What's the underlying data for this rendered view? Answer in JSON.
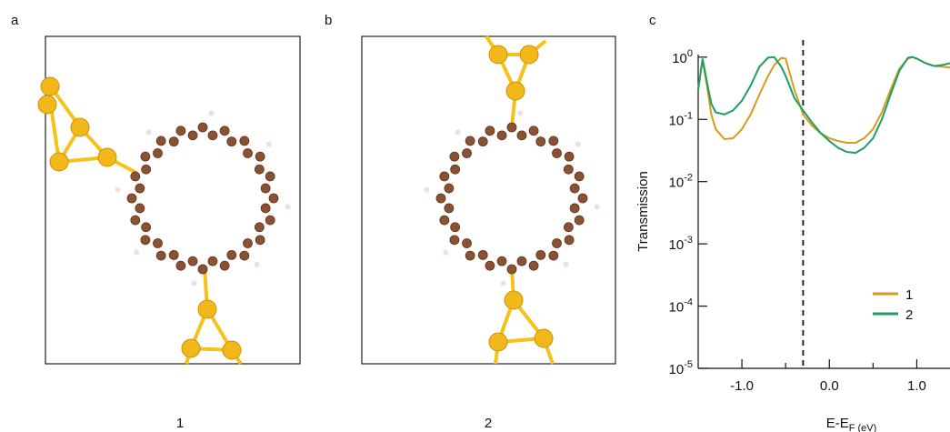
{
  "panels": [
    {
      "letter": "a",
      "caption": "1"
    },
    {
      "letter": "b",
      "caption": "2"
    }
  ],
  "chart_data": {
    "type": "line",
    "letter": "c",
    "x_label": "E-E_F (eV)",
    "y_label": "Transmission",
    "log_y": true,
    "x": [
      -1.5,
      -1.45,
      -1.4,
      -1.35,
      -1.3,
      -1.2,
      -1.1,
      -1.0,
      -0.9,
      -0.8,
      -0.7,
      -0.63,
      -0.55,
      -0.5,
      -0.4,
      -0.3,
      -0.2,
      -0.1,
      0.0,
      0.1,
      0.2,
      0.3,
      0.4,
      0.5,
      0.6,
      0.7,
      0.8,
      0.9,
      0.95,
      1.0,
      1.1,
      1.2,
      1.3,
      1.38
    ],
    "series": [
      {
        "name": "1",
        "color": "#d99a1c",
        "values": [
          0.3,
          0.9,
          0.35,
          0.12,
          0.07,
          0.048,
          0.05,
          0.07,
          0.12,
          0.25,
          0.5,
          0.75,
          0.97,
          0.95,
          0.3,
          0.12,
          0.08,
          0.06,
          0.05,
          0.045,
          0.042,
          0.042,
          0.05,
          0.07,
          0.13,
          0.3,
          0.65,
          0.95,
          1.0,
          0.95,
          0.8,
          0.72,
          0.7,
          0.68
        ]
      },
      {
        "name": "2",
        "color": "#1aa060",
        "values": [
          0.3,
          0.95,
          0.4,
          0.18,
          0.13,
          0.12,
          0.14,
          0.2,
          0.35,
          0.7,
          0.98,
          1.0,
          0.7,
          0.5,
          0.22,
          0.14,
          0.09,
          0.06,
          0.045,
          0.035,
          0.03,
          0.029,
          0.035,
          0.05,
          0.1,
          0.25,
          0.6,
          0.98,
          1.0,
          0.95,
          0.8,
          0.72,
          0.75,
          0.8
        ]
      }
    ],
    "xlim": [
      -1.5,
      1.38
    ],
    "ylim": [
      1e-05,
      1.1
    ],
    "xticks": [
      {
        "value": -1,
        "label": "-1.0"
      },
      {
        "value": 0,
        "label": "0.0"
      },
      {
        "value": 1,
        "label": "1.0"
      }
    ],
    "x_minor_ticks": [
      -0.5,
      0.5
    ],
    "yticks": [
      {
        "value": 1,
        "label": "10^0"
      },
      {
        "value": 0.1,
        "label": "10^-1"
      },
      {
        "value": 0.01,
        "label": "10^-2"
      },
      {
        "value": 0.001,
        "label": "10^-3"
      },
      {
        "value": 0.0001,
        "label": "10^-4"
      },
      {
        "value": 1e-05,
        "label": "10^-5"
      }
    ],
    "vline": -0.3,
    "legend": "lower right"
  }
}
